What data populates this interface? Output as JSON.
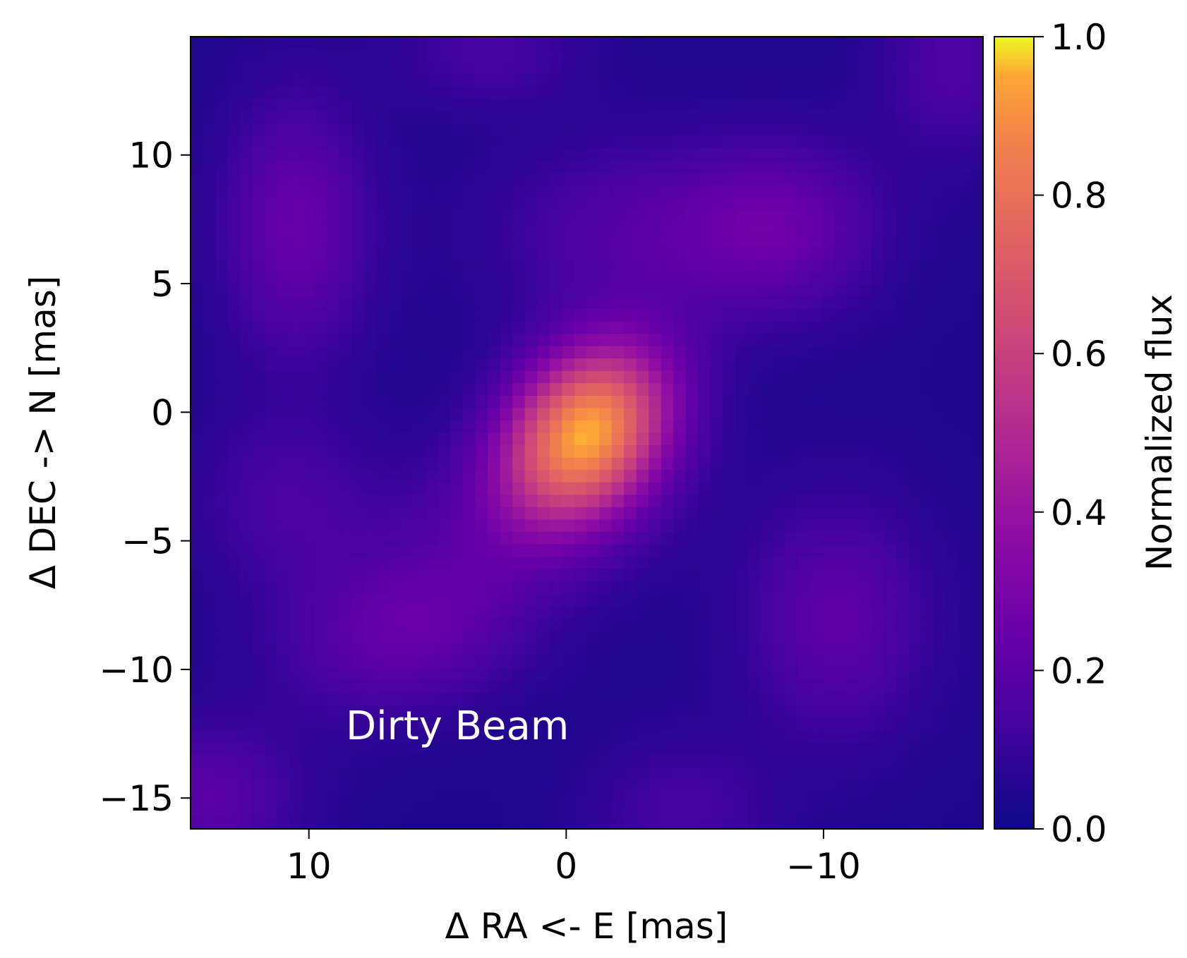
{
  "chart_data": {
    "type": "heatmap",
    "title": "",
    "xlabel": "Δ RA <- E [mas]",
    "ylabel": "Δ DEC -> N [mas]",
    "xlim": [
      14.6,
      -16.2
    ],
    "ylim": [
      -16.2,
      14.6
    ],
    "x_reversed": true,
    "x_ticks": [
      10,
      0,
      -10
    ],
    "x_tick_labels": [
      "10",
      "0",
      "−10"
    ],
    "y_ticks": [
      10,
      5,
      0,
      -5,
      -10,
      -15
    ],
    "y_tick_labels": [
      "10",
      "5",
      "0",
      "−5",
      "−10",
      "−15"
    ],
    "colormap": "plasma",
    "colorbar": {
      "label": "Normalized flux",
      "range": [
        0.0,
        1.0
      ],
      "ticks": [
        0.0,
        0.2,
        0.4,
        0.6,
        0.8,
        1.0
      ],
      "tick_labels": [
        "0.0",
        "0.2",
        "0.4",
        "0.6",
        "0.8",
        "1.0"
      ]
    },
    "annotation": "Dirty Beam",
    "features": [
      {
        "x": -0.8,
        "y": -0.8,
        "peak": 0.9,
        "sx": 2.0,
        "sy": 2.6,
        "rot": 40
      },
      {
        "x": 10.5,
        "y": 7.2,
        "peak": 0.2,
        "sx": 2.0,
        "sy": 3.5,
        "rot": 0
      },
      {
        "x": -3.0,
        "y": 7.0,
        "peak": 0.14,
        "sx": 4.0,
        "sy": 2.5,
        "rot": 0
      },
      {
        "x": -8.5,
        "y": 7.2,
        "peak": 0.17,
        "sx": 2.6,
        "sy": 2.3,
        "rot": 0
      },
      {
        "x": 6.0,
        "y": -8.3,
        "peak": 0.2,
        "sx": 3.5,
        "sy": 2.2,
        "rot": -15
      },
      {
        "x": -10.5,
        "y": -8.0,
        "peak": 0.17,
        "sx": 2.5,
        "sy": 3.2,
        "rot": 0
      },
      {
        "x": 14.0,
        "y": -15.0,
        "peak": 0.16,
        "sx": 2.5,
        "sy": 2.0,
        "rot": 0
      },
      {
        "x": 11.0,
        "y": -3.5,
        "peak": 0.1,
        "sx": 2.5,
        "sy": 2.5,
        "rot": 0
      },
      {
        "x": -4.5,
        "y": -15.5,
        "peak": 0.1,
        "sx": 2.5,
        "sy": 2.0,
        "rot": 0
      },
      {
        "x": -15.0,
        "y": 13.5,
        "peak": 0.12,
        "sx": 2.0,
        "sy": 2.5,
        "rot": 0
      },
      {
        "x": 3.0,
        "y": 14.0,
        "peak": 0.1,
        "sx": 2.5,
        "sy": 1.5,
        "rot": 0
      },
      {
        "x": 2.0,
        "y": -4.0,
        "peak": 0.08,
        "sx": 4.0,
        "sy": 2.0,
        "rot": 0
      }
    ],
    "background_level": 0.04
  }
}
